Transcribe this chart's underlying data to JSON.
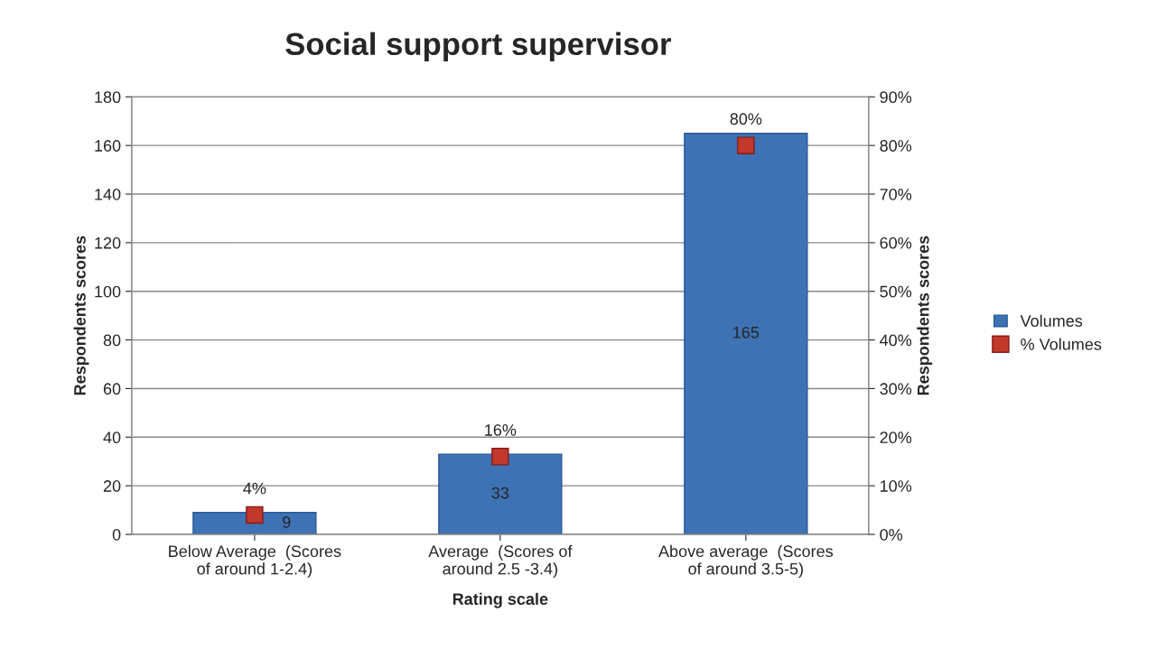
{
  "chart_data": {
    "type": "bar",
    "title": "Social support supervisor",
    "xlabel": "Rating scale",
    "ylabel": "Respondents scores",
    "y2label": "Respondents scores",
    "categories": [
      "Below Average  (Scores of around 1-2.4)",
      "Average  (Scores of around 2.5 -3.4)",
      "Above average  (Scores of around 3.5-5)"
    ],
    "series": [
      {
        "name": "Volumes",
        "color": "#3d72b4",
        "values": [
          9,
          33,
          165
        ],
        "value_labels": [
          "9",
          "33",
          "165"
        ]
      },
      {
        "name": "% Volumes",
        "type": "scatter",
        "axis": "y2",
        "color": "#c0392b",
        "marker": "square",
        "values": [
          4,
          16,
          80
        ],
        "value_labels": [
          "4%",
          "16%",
          "80%"
        ]
      }
    ],
    "ylim": [
      0,
      180
    ],
    "yticks": [
      0,
      20,
      40,
      60,
      80,
      100,
      120,
      140,
      160,
      180
    ],
    "y2lim": [
      0,
      90
    ],
    "y2ticks": [
      {
        "value": 0,
        "label": "0%"
      },
      {
        "value": 10,
        "label": "10%"
      },
      {
        "value": 20,
        "label": "20%"
      },
      {
        "value": 30,
        "label": "30%"
      },
      {
        "value": 40,
        "label": "40%"
      },
      {
        "value": 50,
        "label": "50%"
      },
      {
        "value": 60,
        "label": "60%"
      },
      {
        "value": 70,
        "label": "70%"
      },
      {
        "value": 80,
        "label": "80%"
      },
      {
        "value": 90,
        "label": "90%"
      }
    ],
    "grid": "y",
    "legend": "right"
  }
}
